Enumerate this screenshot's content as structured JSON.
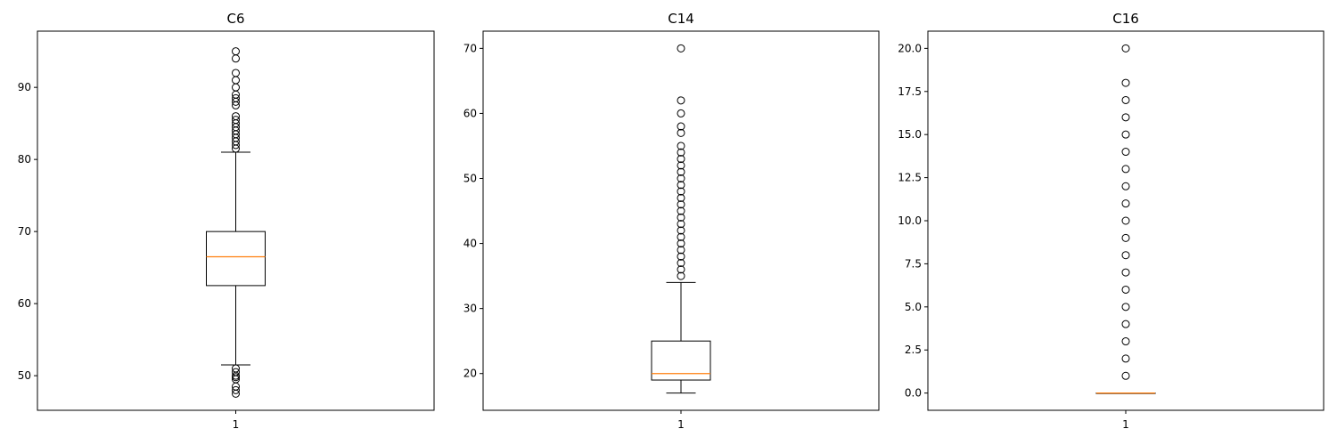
{
  "colors": {
    "median": "#ff7f0e",
    "box": "#000000",
    "flier": "#000000",
    "background": "#ffffff"
  },
  "chart_data": [
    {
      "type": "box",
      "title": "C6",
      "xlabel": "",
      "ylabel": "",
      "x_tick_labels": [
        "1"
      ],
      "ylim": [
        45.2,
        97.8
      ],
      "y_ticks": [
        50,
        60,
        70,
        80,
        90
      ],
      "y_tick_labels": [
        "50",
        "60",
        "70",
        "80",
        "90"
      ],
      "grid": false,
      "box": {
        "q1": 62.5,
        "median": 66.5,
        "q3": 70.0,
        "whisker_low": 51.5,
        "whisker_high": 81.0,
        "fliers": [
          47.5,
          48.0,
          48.5,
          49.5,
          49.8,
          50.0,
          50.5,
          51.0,
          81.5,
          82.0,
          82.5,
          83.0,
          83.5,
          84.0,
          84.5,
          85.0,
          85.5,
          86.0,
          87.5,
          88.0,
          88.5,
          89.0,
          90.0,
          91.0,
          92.0,
          94.0,
          95.0
        ]
      }
    },
    {
      "type": "box",
      "title": "C14",
      "xlabel": "",
      "ylabel": "",
      "x_tick_labels": [
        "1"
      ],
      "ylim": [
        14.35,
        72.65
      ],
      "y_ticks": [
        20,
        30,
        40,
        50,
        60,
        70
      ],
      "y_tick_labels": [
        "20",
        "30",
        "40",
        "50",
        "60",
        "70"
      ],
      "grid": false,
      "box": {
        "q1": 19.0,
        "median": 20.0,
        "q3": 25.0,
        "whisker_low": 17.0,
        "whisker_high": 34.0,
        "fliers": [
          35,
          36,
          37,
          38,
          39,
          40,
          41,
          42,
          43,
          44,
          45,
          46,
          47,
          48,
          49,
          50,
          51,
          52,
          53,
          54,
          55,
          57,
          58,
          60,
          62,
          70
        ]
      }
    },
    {
      "type": "box",
      "title": "C16",
      "xlabel": "",
      "ylabel": "",
      "x_tick_labels": [
        "1"
      ],
      "ylim": [
        -1.0,
        21.0
      ],
      "y_ticks": [
        0.0,
        2.5,
        5.0,
        7.5,
        10.0,
        12.5,
        15.0,
        17.5,
        20.0
      ],
      "y_tick_labels": [
        "0.0",
        "2.5",
        "5.0",
        "7.5",
        "10.0",
        "12.5",
        "15.0",
        "17.5",
        "20.0"
      ],
      "grid": false,
      "box": {
        "q1": 0,
        "median": 0,
        "q3": 0,
        "whisker_low": 0,
        "whisker_high": 0,
        "fliers": [
          1,
          2,
          3,
          4,
          5,
          6,
          7,
          8,
          9,
          10,
          11,
          12,
          13,
          14,
          15,
          16,
          17,
          18,
          20
        ]
      }
    }
  ]
}
